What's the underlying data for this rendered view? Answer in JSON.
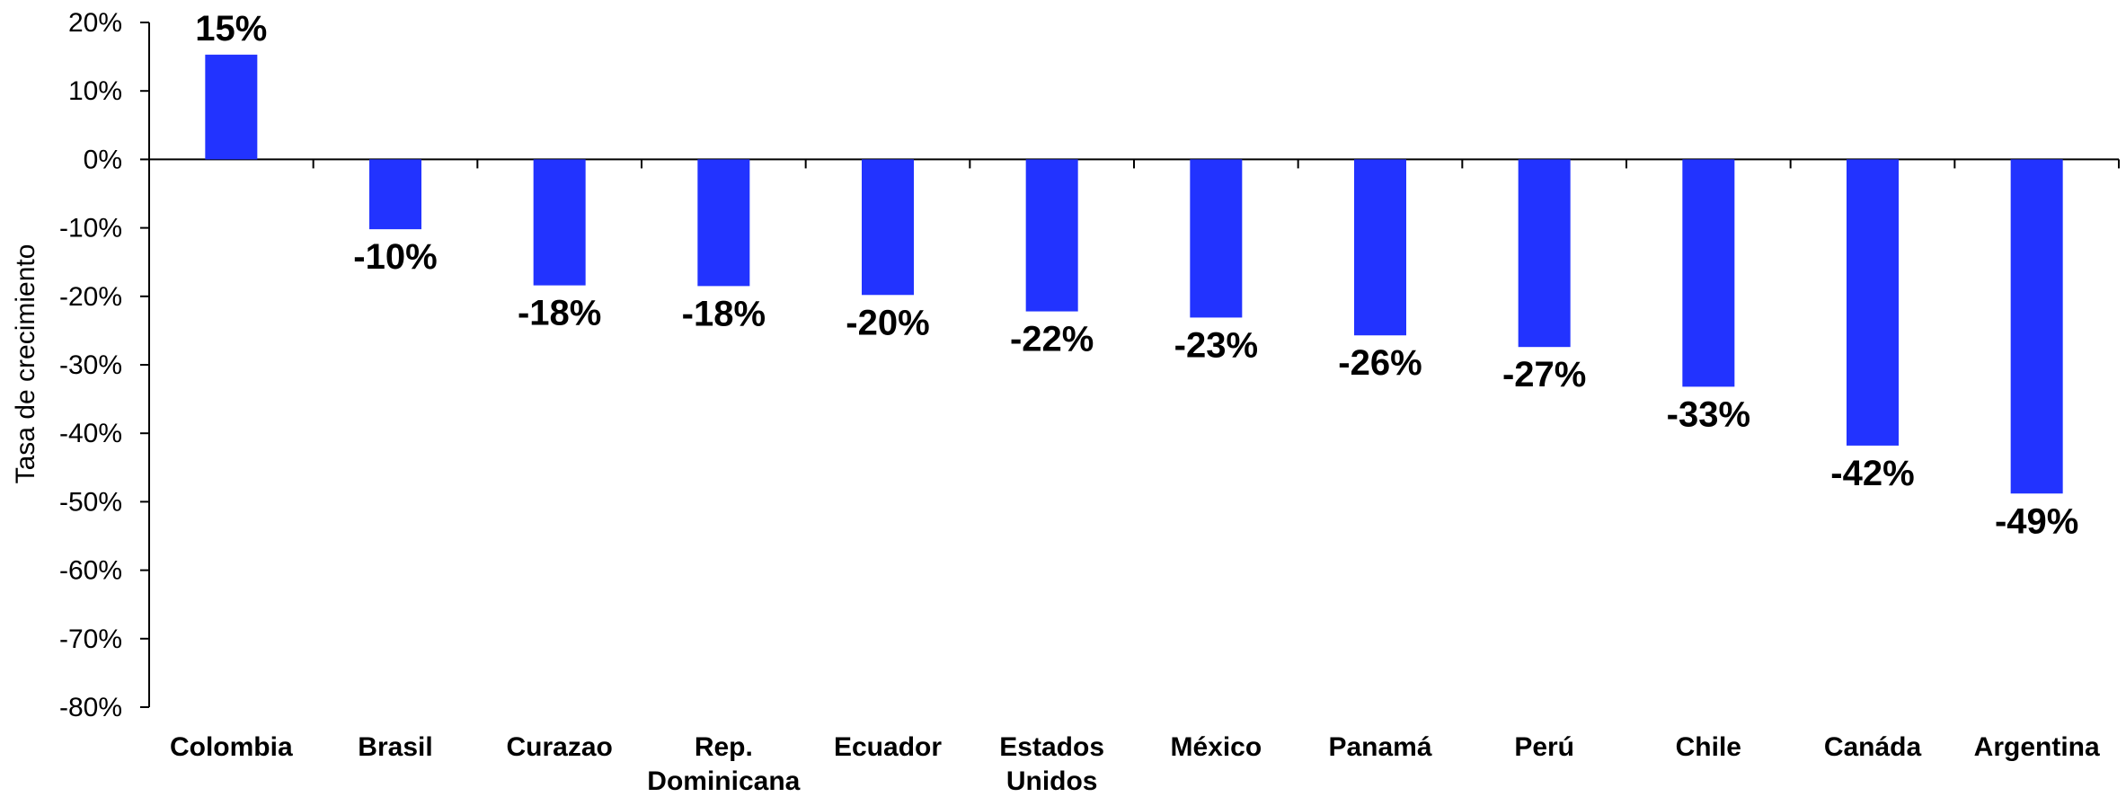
{
  "chart_data": {
    "type": "bar",
    "title": "",
    "xlabel": "",
    "ylabel": "Tasa de crecimiento",
    "ylim": [
      -80,
      20
    ],
    "yticks": [
      20,
      10,
      0,
      -10,
      -20,
      -30,
      -40,
      -50,
      -60,
      -70,
      -80
    ],
    "ytick_labels": [
      "20%",
      "10%",
      "0%",
      "-10%",
      "-20%",
      "-30%",
      "-40%",
      "-50%",
      "-60%",
      "-70%",
      "-80%"
    ],
    "categories": [
      "Colombia",
      "Brasil",
      "Curazao",
      "Rep. Dominicana",
      "Ecuador",
      "Estados Unidos",
      "México",
      "Panamá",
      "Perú",
      "Chile",
      "Canáda",
      "Argentina"
    ],
    "values": [
      15.3,
      -10.2,
      -18.4,
      -18.5,
      -19.8,
      -22.2,
      -23.1,
      -25.7,
      -27.4,
      -33.2,
      -41.8,
      -48.8
    ],
    "data_labels": [
      "15%",
      "-10%",
      "-18%",
      "-18%",
      "-20%",
      "-22%",
      "-23%",
      "-26%",
      "-27%",
      "-33%",
      "-42%",
      "-49%"
    ],
    "bar_color": "#2233ff",
    "grid": false,
    "legend": "none"
  }
}
